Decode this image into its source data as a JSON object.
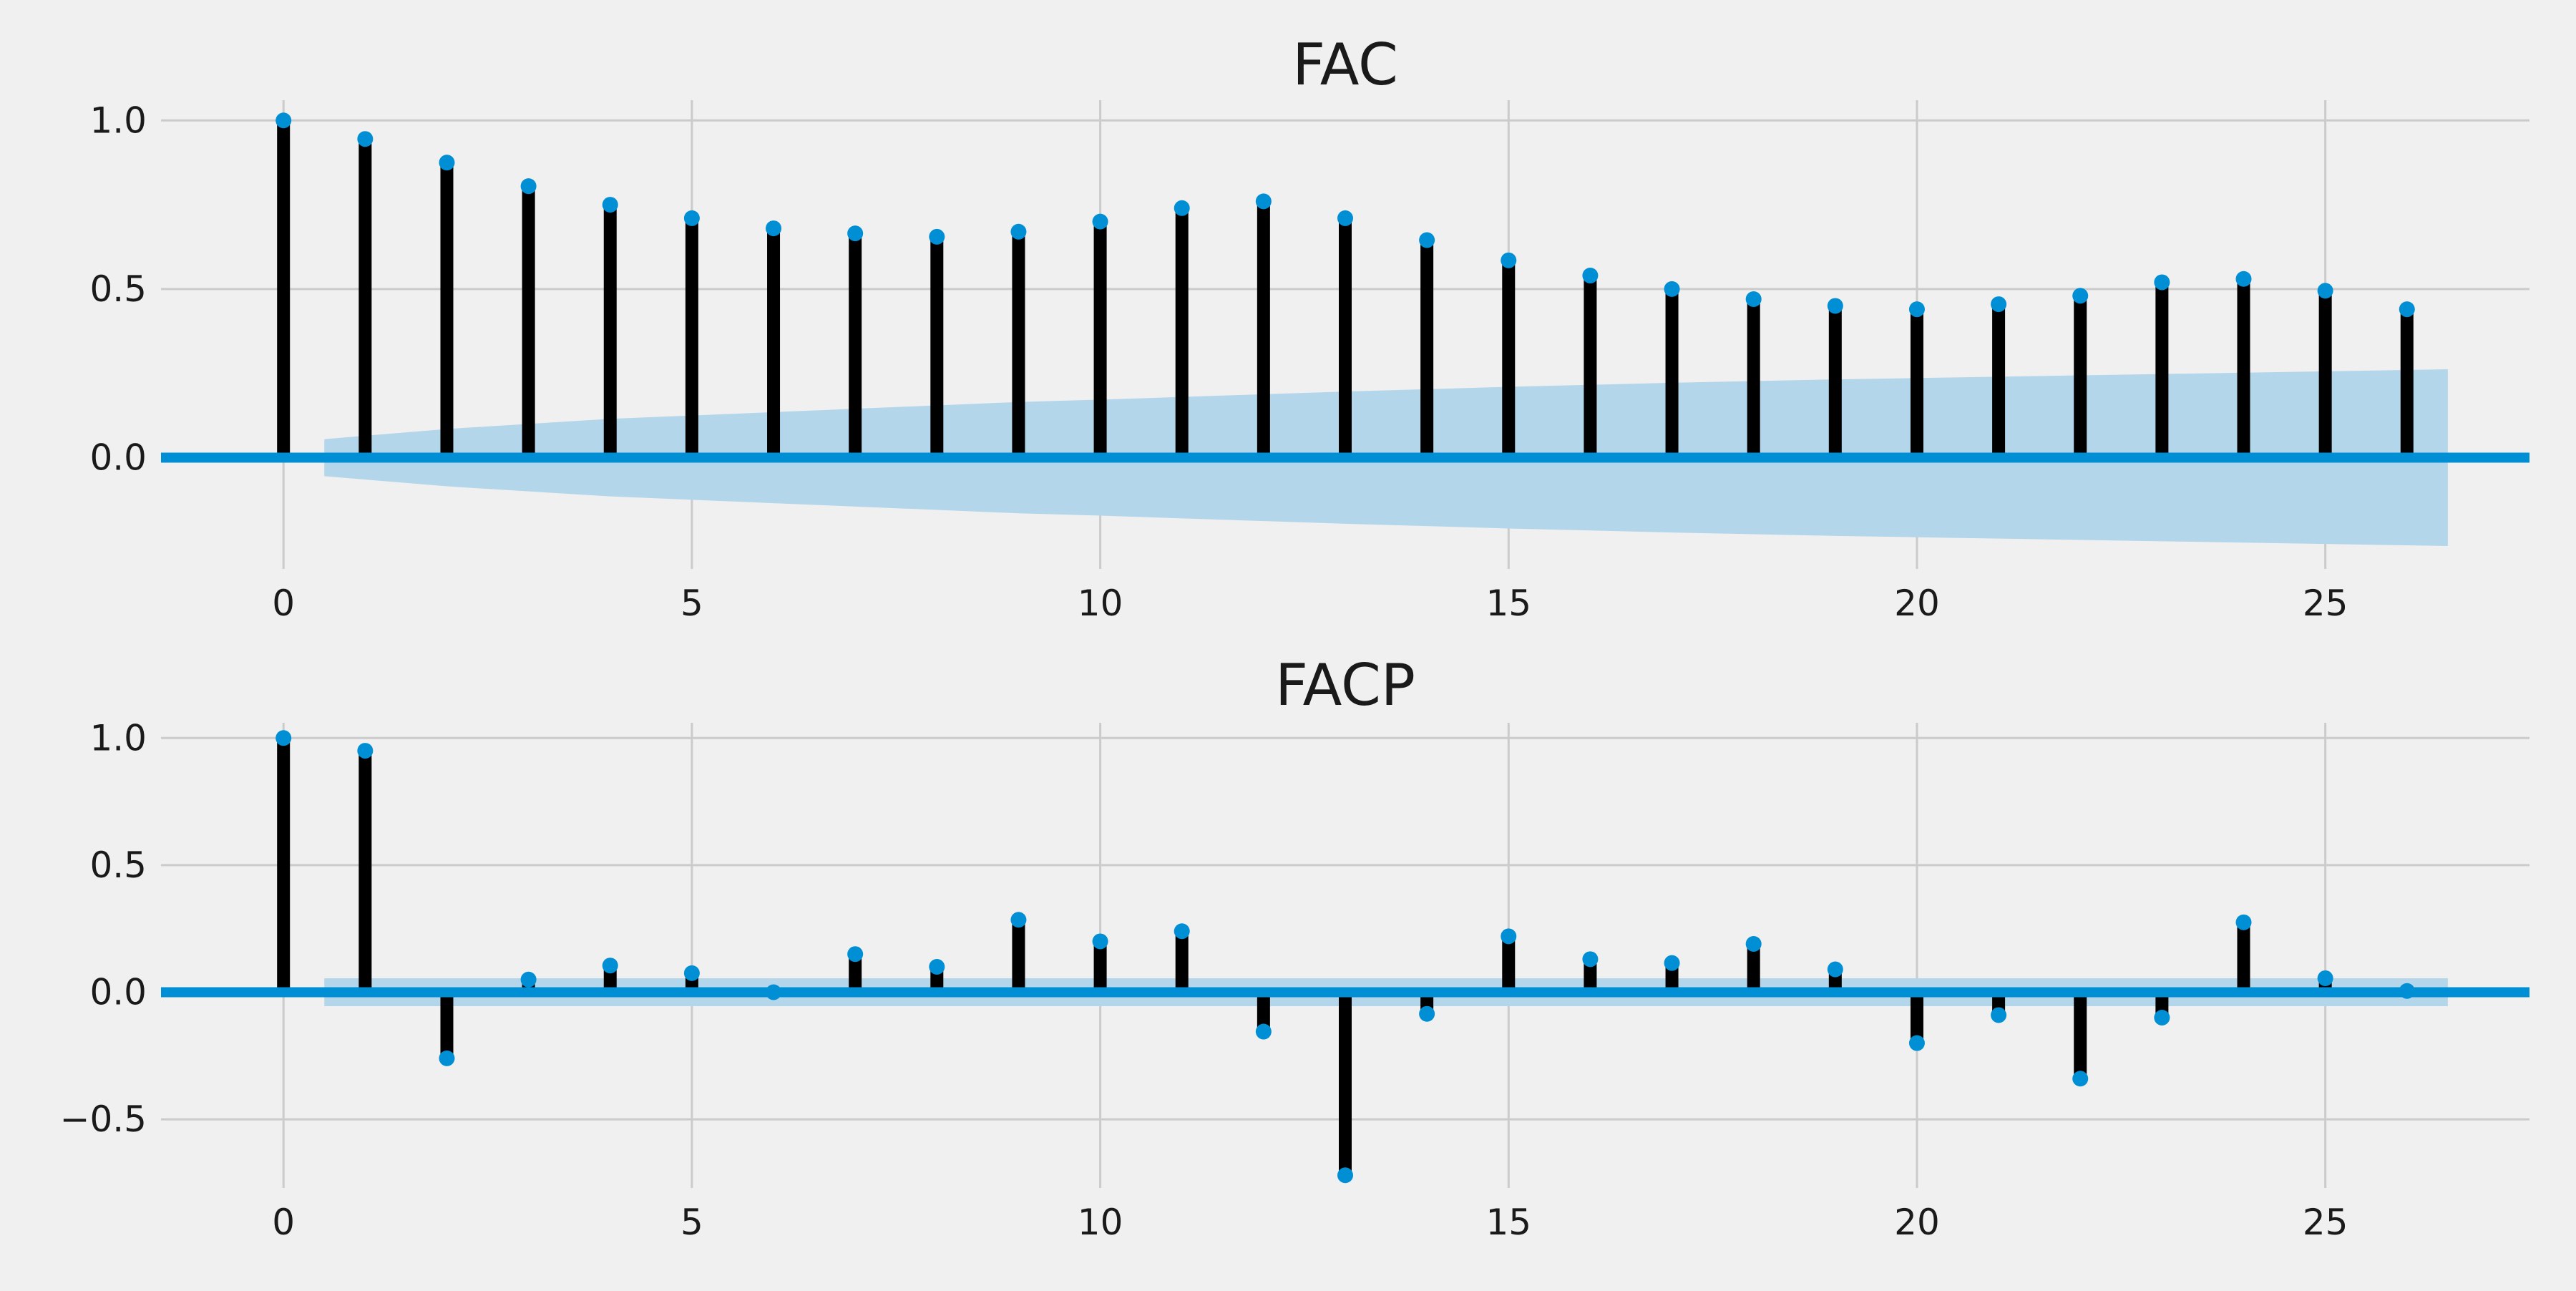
{
  "chart_data": [
    {
      "type": "stem",
      "title": "FAC",
      "xlim": [
        -1.5,
        27.5
      ],
      "ylim": [
        -0.33,
        1.06
      ],
      "xticks": [
        0,
        5,
        10,
        15,
        20,
        25
      ],
      "xtick_labels": [
        "0",
        "5",
        "10",
        "15",
        "20",
        "25"
      ],
      "yticks": [
        0.0,
        0.5,
        1.0
      ],
      "ytick_labels": [
        "0.0",
        "0.5",
        "1.0"
      ],
      "grid": true,
      "lags": [
        0,
        1,
        2,
        3,
        4,
        5,
        6,
        7,
        8,
        9,
        10,
        11,
        12,
        13,
        14,
        15,
        16,
        17,
        18,
        19,
        20,
        21,
        22,
        23,
        24,
        25,
        26
      ],
      "values": [
        1.0,
        0.945,
        0.875,
        0.805,
        0.75,
        0.71,
        0.68,
        0.665,
        0.655,
        0.67,
        0.7,
        0.74,
        0.76,
        0.71,
        0.645,
        0.585,
        0.54,
        0.5,
        0.47,
        0.45,
        0.44,
        0.455,
        0.48,
        0.52,
        0.53,
        0.495,
        0.44
      ],
      "confidence_band": {
        "x": [
          0.5,
          1,
          2,
          3,
          4,
          5,
          6,
          7,
          8,
          9,
          10,
          11,
          12,
          13,
          14,
          15,
          16,
          17,
          18,
          19,
          20,
          21,
          22,
          23,
          24,
          25,
          26,
          26.5
        ],
        "upper": [
          0.055,
          0.065,
          0.085,
          0.1,
          0.115,
          0.125,
          0.135,
          0.145,
          0.155,
          0.165,
          0.172,
          0.18,
          0.188,
          0.196,
          0.203,
          0.21,
          0.216,
          0.222,
          0.227,
          0.232,
          0.236,
          0.24,
          0.244,
          0.248,
          0.252,
          0.256,
          0.26,
          0.262
        ],
        "lower": [
          -0.055,
          -0.065,
          -0.085,
          -0.1,
          -0.115,
          -0.125,
          -0.135,
          -0.145,
          -0.155,
          -0.165,
          -0.172,
          -0.18,
          -0.188,
          -0.196,
          -0.203,
          -0.21,
          -0.216,
          -0.222,
          -0.227,
          -0.232,
          -0.236,
          -0.24,
          -0.244,
          -0.248,
          -0.252,
          -0.256,
          -0.26,
          -0.262
        ]
      }
    },
    {
      "type": "stem",
      "title": "FACP",
      "xlim": [
        -1.5,
        27.5
      ],
      "ylim": [
        -0.77,
        1.06
      ],
      "xticks": [
        0,
        5,
        10,
        15,
        20,
        25
      ],
      "xtick_labels": [
        "0",
        "5",
        "10",
        "15",
        "20",
        "25"
      ],
      "yticks": [
        -0.5,
        0.0,
        0.5,
        1.0
      ],
      "ytick_labels": [
        "−0.5",
        "0.0",
        "0.5",
        "1.0"
      ],
      "grid": true,
      "lags": [
        0,
        1,
        2,
        3,
        4,
        5,
        6,
        7,
        8,
        9,
        10,
        11,
        12,
        13,
        14,
        15,
        16,
        17,
        18,
        19,
        20,
        21,
        22,
        23,
        24,
        25,
        26
      ],
      "values": [
        1.0,
        0.95,
        -0.26,
        0.05,
        0.105,
        0.075,
        0.0,
        0.15,
        0.1,
        0.285,
        0.2,
        0.24,
        -0.155,
        -0.72,
        -0.085,
        0.22,
        0.13,
        0.115,
        0.19,
        0.09,
        -0.2,
        -0.09,
        -0.34,
        -0.1,
        0.275,
        0.055,
        0.005
      ],
      "confidence_band": {
        "x": [
          0.5,
          26.5
        ],
        "upper": [
          0.055,
          0.055
        ],
        "lower": [
          -0.055,
          -0.055
        ]
      }
    }
  ],
  "colors": {
    "background": "#f0f0f0",
    "grid": "#cbcbcb",
    "stem": "#000000",
    "marker": "#008fd5",
    "zero_line": "#008fd5",
    "band": "#b4d6ea",
    "text": "#1a1a1a"
  }
}
